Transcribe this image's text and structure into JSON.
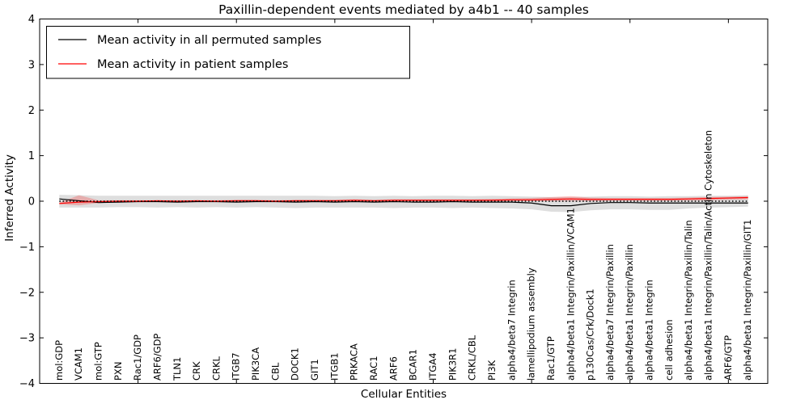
{
  "figure": {
    "background": "#ffffff",
    "frame_color": "#000000"
  },
  "legend": {
    "position": "upper left",
    "items": [
      {
        "label": "Mean activity in all permuted samples",
        "color": "#000000"
      },
      {
        "label": "Mean activity in patient samples",
        "color": "#ff0000"
      }
    ]
  },
  "chart_data": {
    "type": "line",
    "title": "Paxillin-dependent events mediated by a4b1 -- 40 samples",
    "xlabel": "Cellular Entities",
    "ylabel": "Inferred Activity",
    "ylim": [
      -4,
      4
    ],
    "xlim": [
      0,
      37
    ],
    "grid": false,
    "legend_position": "upper left",
    "yticks": [
      4,
      3,
      2,
      1,
      0,
      -1,
      -2,
      -3,
      -4
    ],
    "ytick_labels": [
      "4",
      "3",
      "2",
      "1",
      "0",
      "−1",
      "−2",
      "−3",
      "−4"
    ],
    "xticks": [
      5,
      10,
      15,
      20,
      25,
      30,
      35
    ],
    "categories": [
      "mol:GDP",
      "VCAM1",
      "mol:GTP",
      "PXN",
      "Rac1/GDP",
      "ARF6/GDP",
      "TLN1",
      "CRK",
      "CRKL",
      "ITGB7",
      "PIK3CA",
      "CBL",
      "DOCK1",
      "GIT1",
      "ITGB1",
      "PRKACA",
      "RAC1",
      "ARF6",
      "BCAR1",
      "ITGA4",
      "PIK3R1",
      "CRKL/CBL",
      "PI3K",
      "alpha4/beta7 Integrin",
      "lamellipodium assembly",
      "Rac1/GTP",
      "alpha4/beta1 Integrin/Paxillin/VCAM1",
      "p130Cas/Crk/Dock1",
      "alpha4/beta7 Integrin/Paxillin",
      "alpha4/beta1 Integrin/Paxillin",
      "alpha4/beta1 Integrin",
      "cell adhesion",
      "alpha4/beta1 Integrin/Paxillin/Talin",
      "alpha4/beta1 Integrin/Paxillin/Talin/Actin Cytoskeleton",
      "ARF6/GTP",
      "alpha4/beta1 Integrin/Paxillin/GIT1"
    ],
    "series": [
      {
        "name": "Mean activity in all permuted samples",
        "color": "#000000",
        "band_color": "#000000",
        "band_opacity": 0.13,
        "values": [
          0.05,
          0.01,
          -0.03,
          -0.02,
          -0.01,
          -0.01,
          -0.02,
          -0.01,
          -0.01,
          -0.02,
          -0.01,
          -0.01,
          -0.02,
          -0.01,
          -0.02,
          -0.01,
          -0.02,
          -0.01,
          -0.02,
          -0.02,
          -0.01,
          -0.02,
          -0.02,
          -0.02,
          -0.04,
          -0.1,
          -0.1,
          -0.05,
          -0.03,
          -0.03,
          -0.04,
          -0.04,
          -0.04,
          -0.04,
          -0.04,
          -0.04
        ],
        "band_upper": [
          0.14,
          0.13,
          0.12,
          0.12,
          0.12,
          0.12,
          0.12,
          0.12,
          0.12,
          0.12,
          0.12,
          0.12,
          0.12,
          0.12,
          0.11,
          0.12,
          0.11,
          0.12,
          0.11,
          0.12,
          0.12,
          0.11,
          0.12,
          0.11,
          0.1,
          0.09,
          0.09,
          0.1,
          0.11,
          0.11,
          0.1,
          0.11,
          0.11,
          0.12,
          0.12,
          0.13
        ],
        "band_lower": [
          -0.14,
          -0.14,
          -0.14,
          -0.13,
          -0.13,
          -0.14,
          -0.13,
          -0.14,
          -0.13,
          -0.14,
          -0.13,
          -0.14,
          -0.15,
          -0.14,
          -0.14,
          -0.14,
          -0.14,
          -0.15,
          -0.14,
          -0.14,
          -0.15,
          -0.14,
          -0.15,
          -0.16,
          -0.18,
          -0.23,
          -0.24,
          -0.2,
          -0.18,
          -0.18,
          -0.19,
          -0.19,
          -0.16,
          -0.14,
          -0.13,
          -0.12
        ]
      },
      {
        "name": "Mean activity in patient samples",
        "color": "#ff0000",
        "band_color": "#ff0000",
        "band_opacity": 0.22,
        "values": [
          -0.05,
          -0.02,
          -0.01,
          0.0,
          0.0,
          0.01,
          0.0,
          0.01,
          0.0,
          0.01,
          0.01,
          0.0,
          0.01,
          0.01,
          0.01,
          0.02,
          0.01,
          0.02,
          0.02,
          0.02,
          0.02,
          0.02,
          0.02,
          0.03,
          0.03,
          0.04,
          0.05,
          0.04,
          0.04,
          0.04,
          0.04,
          0.04,
          0.05,
          0.06,
          0.07,
          0.08
        ],
        "band_upper": [
          -0.03,
          0.13,
          0.02,
          0.02,
          0.02,
          0.02,
          0.02,
          0.02,
          0.02,
          0.03,
          0.03,
          0.02,
          0.03,
          0.03,
          0.03,
          0.04,
          0.03,
          0.04,
          0.04,
          0.04,
          0.04,
          0.04,
          0.05,
          0.06,
          0.07,
          0.09,
          0.11,
          0.08,
          0.07,
          0.07,
          0.07,
          0.07,
          0.08,
          0.09,
          0.1,
          0.11
        ],
        "band_lower": [
          -0.07,
          -0.09,
          -0.04,
          -0.02,
          -0.02,
          -0.01,
          -0.02,
          -0.01,
          -0.02,
          -0.01,
          -0.01,
          -0.02,
          -0.01,
          -0.01,
          -0.01,
          0.0,
          -0.01,
          0.0,
          0.0,
          0.0,
          0.0,
          0.0,
          0.0,
          0.0,
          0.0,
          0.0,
          0.0,
          0.0,
          0.01,
          0.01,
          0.01,
          0.01,
          0.01,
          0.02,
          0.03,
          0.04
        ]
      }
    ],
    "zero_line": {
      "value": 0,
      "style": "dotted",
      "color": "#000000"
    }
  }
}
